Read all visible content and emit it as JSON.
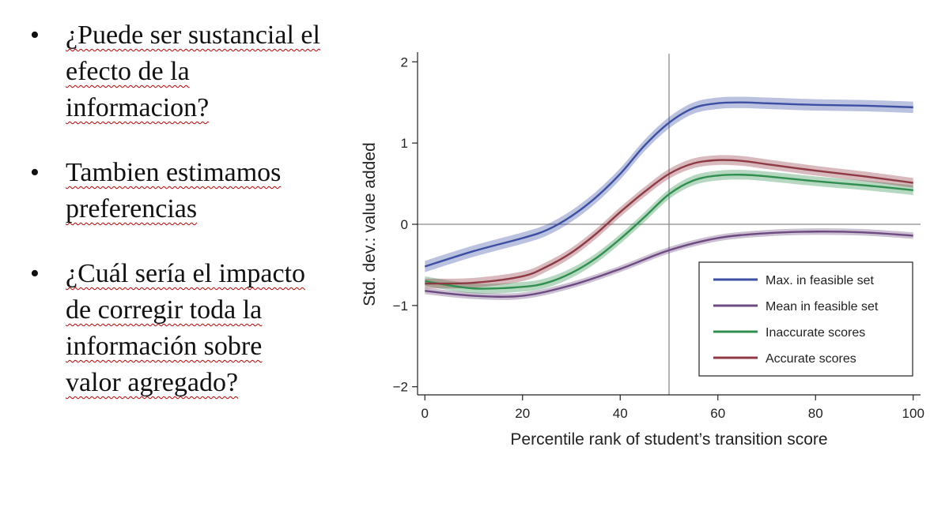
{
  "bullets": [
    {
      "glyph": "•",
      "text": "¿Puede ser sustancial el efecto de la informacion?"
    },
    {
      "glyph": "•",
      "text": "Tambien estimamos preferencias"
    },
    {
      "glyph": "•",
      "text": "¿Cuál sería el impacto de corregir toda la información sobre valor agregado?"
    }
  ],
  "chart_data": {
    "type": "line",
    "title": "",
    "xlabel": "Percentile rank of student’s transition score",
    "ylabel": "Std. dev.: value added",
    "xlim": [
      -1.5,
      101.5
    ],
    "ylim": [
      -2.1,
      2.1
    ],
    "xticks": [
      0,
      20,
      40,
      60,
      80,
      100
    ],
    "xtick_labels": [
      "0",
      "20",
      "40",
      "60",
      "80",
      "100"
    ],
    "yticks": [
      2,
      1,
      0,
      -1,
      -2
    ],
    "ytick_labels": [
      "2",
      "1",
      "0",
      "−1",
      "−2"
    ],
    "vline_x": 50,
    "hline_y": 0,
    "legend_position": "bottom-right",
    "series": [
      {
        "name": "Max. in feasible set",
        "color": "#3b4fa3",
        "band": 0.07,
        "x": [
          0,
          10,
          20,
          25,
          30,
          35,
          40,
          45,
          50,
          55,
          60,
          65,
          70,
          80,
          90,
          100
        ],
        "y": [
          -0.52,
          -0.33,
          -0.17,
          -0.07,
          0.1,
          0.33,
          0.62,
          0.97,
          1.25,
          1.43,
          1.49,
          1.5,
          1.49,
          1.47,
          1.46,
          1.44
        ]
      },
      {
        "name": "Mean in feasible set",
        "color": "#6e4a82",
        "band": 0.04,
        "x": [
          0,
          10,
          20,
          30,
          40,
          50,
          60,
          70,
          80,
          90,
          100
        ],
        "y": [
          -0.82,
          -0.88,
          -0.88,
          -0.75,
          -0.55,
          -0.32,
          -0.17,
          -0.11,
          -0.09,
          -0.1,
          -0.14
        ]
      },
      {
        "name": "Inaccurate scores",
        "color": "#2f8f4e",
        "band": 0.06,
        "x": [
          0,
          10,
          20,
          25,
          30,
          35,
          40,
          45,
          50,
          55,
          60,
          65,
          70,
          80,
          90,
          100
        ],
        "y": [
          -0.7,
          -0.79,
          -0.77,
          -0.72,
          -0.6,
          -0.42,
          -0.18,
          0.09,
          0.37,
          0.54,
          0.6,
          0.61,
          0.59,
          0.53,
          0.48,
          0.42
        ]
      },
      {
        "name": "Accurate scores",
        "color": "#8e3a44",
        "band": 0.06,
        "x": [
          0,
          10,
          20,
          25,
          30,
          35,
          40,
          45,
          50,
          55,
          60,
          65,
          70,
          80,
          90,
          100
        ],
        "y": [
          -0.73,
          -0.72,
          -0.64,
          -0.52,
          -0.35,
          -0.12,
          0.15,
          0.4,
          0.62,
          0.75,
          0.79,
          0.78,
          0.74,
          0.66,
          0.59,
          0.51
        ]
      }
    ]
  }
}
